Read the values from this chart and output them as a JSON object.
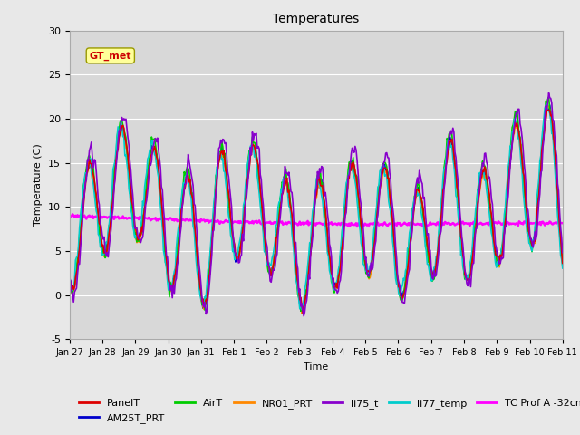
{
  "title": "Temperatures",
  "xlabel": "Time",
  "ylabel": "Temperature (C)",
  "ylim": [
    -5,
    30
  ],
  "background_color": "#e8e8e8",
  "plot_bg_color": "#d8d8d8",
  "gt_met_label": "GT_met",
  "gt_met_text_color": "#cc0000",
  "gt_met_box_color": "#ffff99",
  "gt_met_edge_color": "#999900",
  "x_tick_labels": [
    "Jan 27",
    "Jan 28",
    "Jan 29",
    "Jan 30",
    "Jan 31",
    "Feb 1",
    "Feb 2",
    "Feb 3",
    "Feb 4",
    "Feb 5",
    "Feb 6",
    "Feb 7",
    "Feb 8",
    "Feb 9",
    "Feb 10",
    "Feb 11"
  ],
  "series": {
    "PanelT": {
      "color": "#dd0000",
      "lw": 1.2
    },
    "AM25T_PRT": {
      "color": "#0000cc",
      "lw": 1.2
    },
    "AirT": {
      "color": "#00cc00",
      "lw": 1.2
    },
    "NR01_PRT": {
      "color": "#ff8800",
      "lw": 1.2
    },
    "li75_t": {
      "color": "#8800cc",
      "lw": 1.2
    },
    "li77_temp": {
      "color": "#00cccc",
      "lw": 1.2
    },
    "TC Prof A -32cm": {
      "color": "#ff00ff",
      "lw": 1.8
    }
  },
  "grid_color": "#ffffff",
  "grid_lw": 0.8,
  "n_points": 500
}
